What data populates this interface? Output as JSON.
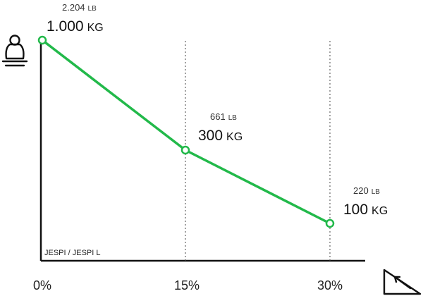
{
  "chart_data": {
    "type": "line",
    "x": [
      "0%",
      "15%",
      "30%"
    ],
    "series": [
      {
        "values_kg": [
          1000,
          300,
          100
        ],
        "values_lb": [
          2204,
          661,
          220
        ],
        "labels_kg": [
          "1.000",
          "300",
          "100"
        ],
        "labels_lb": [
          "2.204",
          "661",
          "220"
        ]
      }
    ],
    "unit_kg": "KG",
    "unit_lb": "LB",
    "x_ticks": [
      "0%",
      "15%",
      "30%"
    ],
    "model_label": "JESPI / JESPI L",
    "y_icon": "weight-icon",
    "x_icon": "incline-slope-icon",
    "series_color": "#22b94a",
    "grid": "vertical dotted lines at 15% and 30%"
  }
}
